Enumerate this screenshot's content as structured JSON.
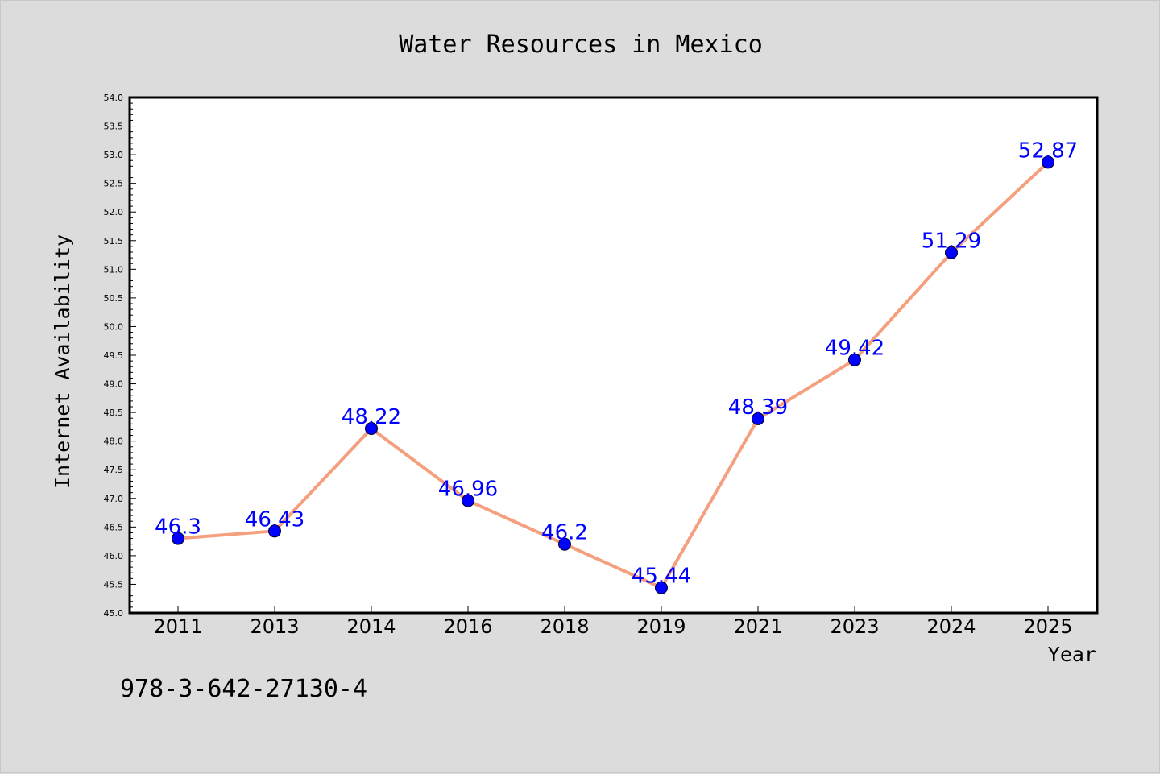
{
  "chart_data": {
    "type": "line",
    "title": "Water Resources in Mexico",
    "xlabel": "Year",
    "ylabel": "Internet Availability",
    "categories": [
      "2011",
      "2013",
      "2014",
      "2016",
      "2018",
      "2019",
      "2021",
      "2023",
      "2024",
      "2025"
    ],
    "values": [
      46.3,
      46.43,
      48.22,
      46.96,
      46.2,
      45.44,
      48.39,
      49.42,
      51.29,
      52.87
    ],
    "data_labels": [
      "46.3",
      "46.43",
      "48.22",
      "46.96",
      "46.2",
      "45.44",
      "48.39",
      "49.42",
      "51.29",
      "52.87"
    ],
    "ylim": [
      45.0,
      54.0
    ],
    "yticks": [
      "45.0",
      "45.5",
      "46.0",
      "46.5",
      "47.0",
      "47.5",
      "48.0",
      "48.5",
      "49.0",
      "49.5",
      "50.0",
      "50.5",
      "51.0",
      "51.5",
      "52.0",
      "52.5",
      "53.0",
      "53.5",
      "54.0"
    ],
    "grid": false,
    "legend": false,
    "line_color": "#f4a07e",
    "marker_color": "#0000ff",
    "label_color": "#0000ff"
  },
  "annotation": {
    "isbn": "978-3-642-27130-4"
  }
}
